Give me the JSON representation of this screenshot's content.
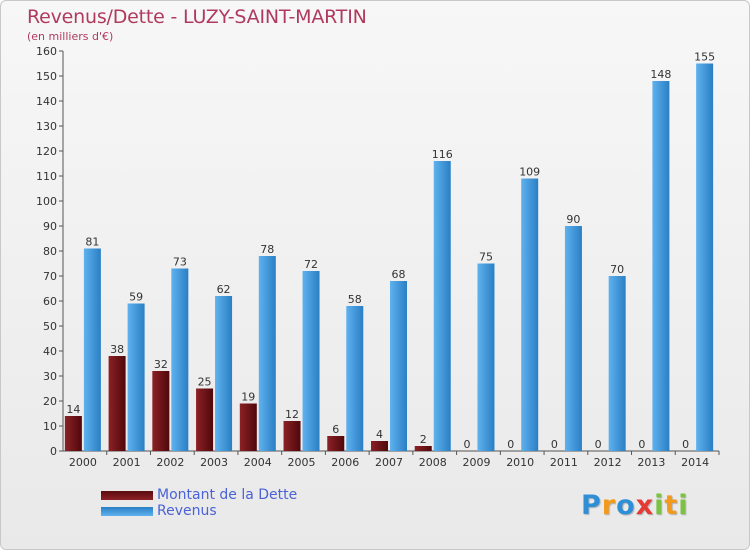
{
  "chart_data": {
    "type": "bar",
    "title": "Revenus/Dette - LUZY-SAINT-MARTIN",
    "subtitle": "(en milliers d'€)",
    "categories": [
      "2000",
      "2001",
      "2002",
      "2003",
      "2004",
      "2005",
      "2006",
      "2007",
      "2008",
      "2009",
      "2010",
      "2011",
      "2012",
      "2013",
      "2014"
    ],
    "series": [
      {
        "name": "Montant de la Dette",
        "color": "#7a1418",
        "values": [
          14,
          38,
          32,
          25,
          19,
          12,
          6,
          4,
          2,
          0,
          0,
          0,
          0,
          0,
          0
        ]
      },
      {
        "name": "Revenus",
        "color": "#3d9ae0",
        "values": [
          81,
          59,
          73,
          62,
          78,
          72,
          58,
          68,
          116,
          75,
          109,
          90,
          70,
          148,
          155
        ]
      }
    ],
    "ylim": [
      0,
      160
    ],
    "yticks": [
      0,
      10,
      20,
      30,
      40,
      50,
      60,
      70,
      80,
      90,
      100,
      110,
      120,
      130,
      140,
      150,
      160
    ],
    "grid": false,
    "legend_position": "bottom-left"
  },
  "logo": {
    "letters": [
      {
        "ch": "P",
        "color": "#2f8fd6"
      },
      {
        "ch": "r",
        "color": "#f29a1d"
      },
      {
        "ch": "o",
        "color": "#2f8fd6"
      },
      {
        "ch": "x",
        "color": "#e53935"
      },
      {
        "ch": "i",
        "color": "#7cc242"
      },
      {
        "ch": "t",
        "color": "#f29a1d"
      },
      {
        "ch": "i",
        "color": "#7cc242"
      }
    ]
  }
}
